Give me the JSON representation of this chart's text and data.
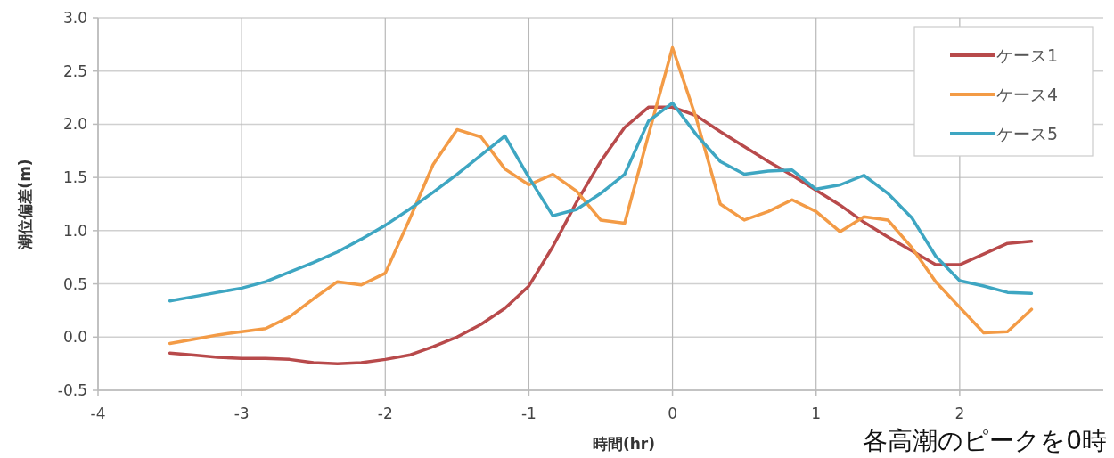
{
  "chart_data": {
    "type": "line",
    "xlabel": "時間(hr)",
    "ylabel": "潮位偏差(m)",
    "x": [
      -3.5,
      -3.333,
      -3.167,
      -3,
      -2.833,
      -2.667,
      -2.5,
      -2.333,
      -2.167,
      -2,
      -1.833,
      -1.667,
      -1.5,
      -1.333,
      -1.167,
      -1,
      -0.833,
      -0.667,
      -0.5,
      -0.333,
      -0.167,
      0,
      0.167,
      0.333,
      0.5,
      0.667,
      0.833,
      1,
      1.167,
      1.333,
      1.5,
      1.667,
      1.833,
      2,
      2.167,
      2.333,
      2.5
    ],
    "series": [
      {
        "name": "ケース1",
        "color": "#b84a4b",
        "values": [
          -0.15,
          -0.17,
          -0.19,
          -0.2,
          -0.2,
          -0.21,
          -0.24,
          -0.25,
          -0.24,
          -0.21,
          -0.17,
          -0.09,
          0.0,
          0.12,
          0.27,
          0.48,
          0.85,
          1.27,
          1.65,
          1.97,
          2.16,
          2.16,
          2.08,
          1.93,
          1.79,
          1.65,
          1.52,
          1.38,
          1.24,
          1.08,
          0.94,
          0.81,
          0.68,
          0.68,
          0.78,
          0.88,
          0.9
        ]
      },
      {
        "name": "ケース4",
        "color": "#f39b46",
        "values": [
          -0.06,
          -0.02,
          0.02,
          0.05,
          0.08,
          0.19,
          0.36,
          0.52,
          0.49,
          0.6,
          1.1,
          1.62,
          1.95,
          1.88,
          1.58,
          1.43,
          1.53,
          1.37,
          1.1,
          1.07,
          1.9,
          2.72,
          2.05,
          1.25,
          1.1,
          1.18,
          1.29,
          1.18,
          0.99,
          1.13,
          1.1,
          0.84,
          0.52,
          0.28,
          0.04,
          0.05,
          0.26
        ]
      },
      {
        "name": "ケース5",
        "color": "#3ea6c2",
        "values": [
          0.34,
          0.38,
          0.42,
          0.46,
          0.52,
          0.61,
          0.7,
          0.8,
          0.92,
          1.05,
          1.2,
          1.36,
          1.53,
          1.71,
          1.89,
          1.5,
          1.14,
          1.2,
          1.35,
          1.53,
          2.03,
          2.2,
          1.9,
          1.65,
          1.53,
          1.56,
          1.57,
          1.39,
          1.43,
          1.52,
          1.35,
          1.12,
          0.76,
          0.53,
          0.48,
          0.42,
          0.41
        ]
      }
    ],
    "xlim": [
      -4,
      3
    ],
    "xticks": [
      -4,
      -3,
      -2,
      -1,
      0,
      1,
      2
    ],
    "ylim": [
      -0.5,
      3.0
    ],
    "yticks": [
      {
        "value": -0.5,
        "label": "-0.5"
      },
      {
        "value": 0,
        "label": "0.0"
      },
      {
        "value": 0.5,
        "label": "0.5"
      },
      {
        "value": 1,
        "label": "1.0"
      },
      {
        "value": 1.5,
        "label": "1.5"
      },
      {
        "value": 2,
        "label": "2.0"
      },
      {
        "value": 2.5,
        "label": "2.5"
      },
      {
        "value": 3,
        "label": "3.0"
      }
    ],
    "grid": true,
    "legend": "top right",
    "marker": "none",
    "line_style": "solid",
    "annotations": [
      "各高潮のピークを0時"
    ]
  }
}
